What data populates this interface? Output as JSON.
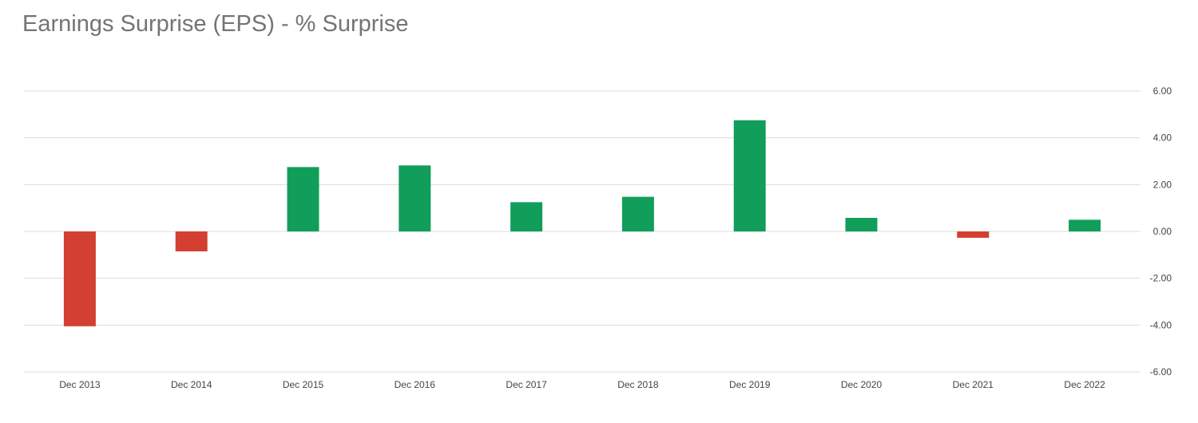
{
  "chart_data": {
    "type": "bar",
    "title": "Earnings Surprise (EPS) - % Surprise",
    "categories": [
      "Dec 2013",
      "Dec 2014",
      "Dec 2015",
      "Dec 2016",
      "Dec 2017",
      "Dec 2018",
      "Dec 2019",
      "Dec 2020",
      "Dec 2021",
      "Dec 2022"
    ],
    "values": [
      -4.05,
      -0.85,
      2.75,
      2.82,
      1.25,
      1.48,
      4.75,
      0.58,
      -0.27,
      0.5
    ],
    "ylim": [
      -6,
      6
    ],
    "yticks": [
      "6.00",
      "4.00",
      "2.00",
      "0.00",
      "-2.00",
      "-4.00",
      "-6.00"
    ],
    "ytick_values": [
      6,
      4,
      2,
      0,
      -2,
      -4,
      -6
    ],
    "y_axis_side": "right",
    "grid": true,
    "legend": "none",
    "colors": {
      "positive": "#119e5a",
      "negative": "#d33f31",
      "grid": "#dcdcdc"
    }
  }
}
